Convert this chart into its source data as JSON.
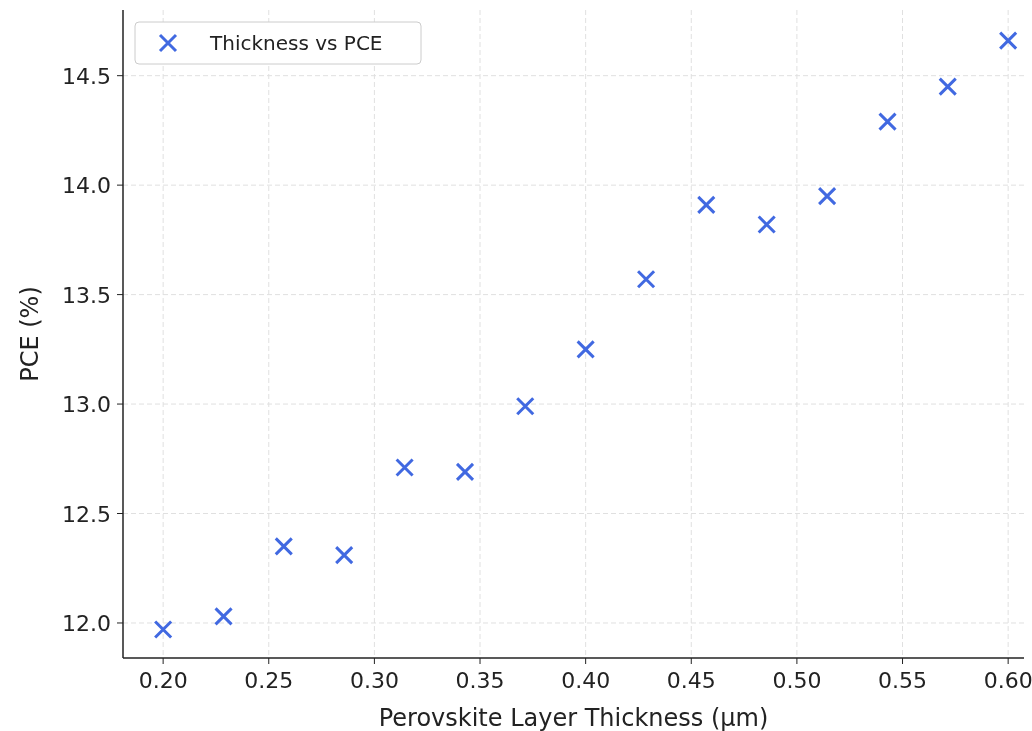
{
  "chart_data": {
    "type": "scatter",
    "xlabel": "Perovskite Layer Thickness (µm)",
    "ylabel": "PCE (%)",
    "x": [
      0.2,
      0.2286,
      0.2571,
      0.2857,
      0.3143,
      0.3429,
      0.3714,
      0.4,
      0.4286,
      0.4571,
      0.4857,
      0.5143,
      0.5429,
      0.5714,
      0.6
    ],
    "series": [
      {
        "name": "Thickness vs PCE",
        "color": "#4169e1",
        "values": [
          11.97,
          12.03,
          12.35,
          12.31,
          12.71,
          12.69,
          12.99,
          13.25,
          13.57,
          13.91,
          13.82,
          13.95,
          14.29,
          14.45,
          14.66
        ]
      }
    ],
    "xlim": [
      0.181,
      0.6075
    ],
    "ylim": [
      11.84,
      14.8
    ],
    "xticks": [
      {
        "value": 0.2,
        "label": "0.20"
      },
      {
        "value": 0.25,
        "label": "0.25"
      },
      {
        "value": 0.3,
        "label": "0.30"
      },
      {
        "value": 0.35,
        "label": "0.35"
      },
      {
        "value": 0.4,
        "label": "0.40"
      },
      {
        "value": 0.45,
        "label": "0.45"
      },
      {
        "value": 0.5,
        "label": "0.50"
      },
      {
        "value": 0.55,
        "label": "0.55"
      },
      {
        "value": 0.6,
        "label": "0.60"
      }
    ],
    "yticks": [
      {
        "value": 12,
        "label": "12.0"
      },
      {
        "value": 12.5,
        "label": "12.5"
      },
      {
        "value": 13,
        "label": "13.0"
      },
      {
        "value": 13.5,
        "label": "13.5"
      },
      {
        "value": 14,
        "label": "14.0"
      },
      {
        "value": 14.5,
        "label": "14.5"
      }
    ],
    "grid": true,
    "legend": "top left",
    "marker": "cross"
  }
}
